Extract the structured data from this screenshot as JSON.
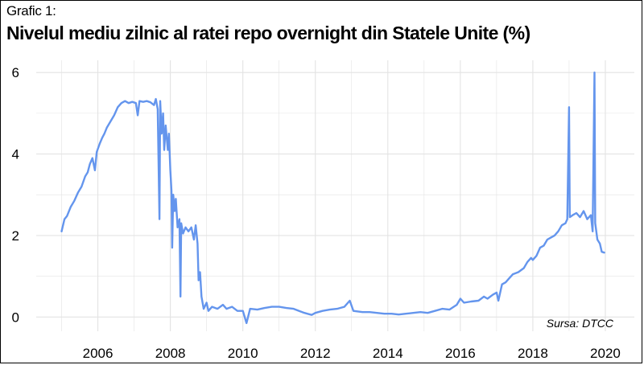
{
  "header": {
    "label": "Grafic 1:",
    "title": "Nivelul mediu zilnic al ratei repo overnight din Statele Unite (%)"
  },
  "source": "Sursa: DTCC",
  "colors": {
    "series": "#6495ed",
    "grid": "#e3e3e3",
    "frame": "#000000"
  },
  "chart_data": {
    "type": "line",
    "title": "Nivelul mediu zilnic al ratei repo overnight din Statele Unite (%)",
    "xlabel": "",
    "ylabel": "",
    "xlim": [
      2004.3,
      2020.8
    ],
    "ylim": [
      -0.35,
      6.3
    ],
    "grid": true,
    "legend": "none",
    "x_ticks": [
      2006,
      2008,
      2010,
      2012,
      2014,
      2016,
      2018,
      2020
    ],
    "y_ticks": [
      0,
      2,
      4,
      6
    ],
    "series": [
      {
        "values": [
          [
            2005.0,
            2.1
          ],
          [
            2005.03,
            2.22
          ],
          [
            2005.08,
            2.4
          ],
          [
            2005.15,
            2.48
          ],
          [
            2005.25,
            2.7
          ],
          [
            2005.35,
            2.85
          ],
          [
            2005.45,
            3.05
          ],
          [
            2005.55,
            3.2
          ],
          [
            2005.65,
            3.45
          ],
          [
            2005.72,
            3.55
          ],
          [
            2005.78,
            3.75
          ],
          [
            2005.85,
            3.9
          ],
          [
            2005.92,
            3.6
          ],
          [
            2005.97,
            4.05
          ],
          [
            2006.05,
            4.25
          ],
          [
            2006.12,
            4.4
          ],
          [
            2006.18,
            4.5
          ],
          [
            2006.25,
            4.65
          ],
          [
            2006.35,
            4.8
          ],
          [
            2006.45,
            4.95
          ],
          [
            2006.55,
            5.15
          ],
          [
            2006.65,
            5.25
          ],
          [
            2006.75,
            5.3
          ],
          [
            2006.85,
            5.25
          ],
          [
            2006.95,
            5.28
          ],
          [
            2007.05,
            5.25
          ],
          [
            2007.1,
            4.95
          ],
          [
            2007.15,
            5.3
          ],
          [
            2007.25,
            5.28
          ],
          [
            2007.35,
            5.3
          ],
          [
            2007.45,
            5.27
          ],
          [
            2007.55,
            5.2
          ],
          [
            2007.6,
            5.35
          ],
          [
            2007.65,
            5.1
          ],
          [
            2007.7,
            2.4
          ],
          [
            2007.72,
            5.3
          ],
          [
            2007.76,
            4.5
          ],
          [
            2007.8,
            5.0
          ],
          [
            2007.83,
            4.1
          ],
          [
            2007.87,
            4.7
          ],
          [
            2007.9,
            4.4
          ],
          [
            2007.93,
            4.1
          ],
          [
            2007.96,
            4.5
          ],
          [
            2008.0,
            3.6
          ],
          [
            2008.03,
            3.1
          ],
          [
            2008.05,
            1.7
          ],
          [
            2008.08,
            3.0
          ],
          [
            2008.12,
            2.6
          ],
          [
            2008.15,
            2.9
          ],
          [
            2008.2,
            2.2
          ],
          [
            2008.25,
            2.4
          ],
          [
            2008.28,
            0.5
          ],
          [
            2008.3,
            2.3
          ],
          [
            2008.35,
            2.05
          ],
          [
            2008.42,
            2.2
          ],
          [
            2008.5,
            2.1
          ],
          [
            2008.58,
            2.2
          ],
          [
            2008.65,
            1.9
          ],
          [
            2008.7,
            2.25
          ],
          [
            2008.75,
            1.8
          ],
          [
            2008.78,
            0.9
          ],
          [
            2008.82,
            1.1
          ],
          [
            2008.86,
            0.5
          ],
          [
            2008.92,
            0.2
          ],
          [
            2009.0,
            0.35
          ],
          [
            2009.05,
            0.15
          ],
          [
            2009.15,
            0.25
          ],
          [
            2009.3,
            0.2
          ],
          [
            2009.45,
            0.3
          ],
          [
            2009.55,
            0.2
          ],
          [
            2009.7,
            0.25
          ],
          [
            2009.85,
            0.15
          ],
          [
            2010.0,
            0.15
          ],
          [
            2010.1,
            -0.15
          ],
          [
            2010.2,
            0.2
          ],
          [
            2010.4,
            0.18
          ],
          [
            2010.6,
            0.22
          ],
          [
            2010.8,
            0.25
          ],
          [
            2011.0,
            0.25
          ],
          [
            2011.2,
            0.22
          ],
          [
            2011.4,
            0.2
          ],
          [
            2011.55,
            0.15
          ],
          [
            2011.7,
            0.1
          ],
          [
            2011.9,
            0.05
          ],
          [
            2012.0,
            0.1
          ],
          [
            2012.2,
            0.15
          ],
          [
            2012.4,
            0.18
          ],
          [
            2012.6,
            0.2
          ],
          [
            2012.8,
            0.25
          ],
          [
            2012.95,
            0.4
          ],
          [
            2013.05,
            0.15
          ],
          [
            2013.3,
            0.12
          ],
          [
            2013.5,
            0.12
          ],
          [
            2013.7,
            0.1
          ],
          [
            2013.9,
            0.08
          ],
          [
            2014.1,
            0.08
          ],
          [
            2014.3,
            0.06
          ],
          [
            2014.5,
            0.08
          ],
          [
            2014.7,
            0.1
          ],
          [
            2014.9,
            0.12
          ],
          [
            2015.1,
            0.1
          ],
          [
            2015.3,
            0.15
          ],
          [
            2015.5,
            0.2
          ],
          [
            2015.7,
            0.18
          ],
          [
            2015.9,
            0.3
          ],
          [
            2016.0,
            0.45
          ],
          [
            2016.1,
            0.35
          ],
          [
            2016.3,
            0.38
          ],
          [
            2016.5,
            0.4
          ],
          [
            2016.65,
            0.5
          ],
          [
            2016.75,
            0.45
          ],
          [
            2016.9,
            0.55
          ],
          [
            2017.0,
            0.6
          ],
          [
            2017.05,
            0.4
          ],
          [
            2017.15,
            0.8
          ],
          [
            2017.25,
            0.85
          ],
          [
            2017.35,
            0.95
          ],
          [
            2017.45,
            1.05
          ],
          [
            2017.6,
            1.1
          ],
          [
            2017.75,
            1.2
          ],
          [
            2017.85,
            1.35
          ],
          [
            2017.95,
            1.45
          ],
          [
            2018.0,
            1.4
          ],
          [
            2018.1,
            1.5
          ],
          [
            2018.2,
            1.7
          ],
          [
            2018.3,
            1.75
          ],
          [
            2018.4,
            1.9
          ],
          [
            2018.5,
            1.95
          ],
          [
            2018.6,
            2.0
          ],
          [
            2018.7,
            2.1
          ],
          [
            2018.8,
            2.25
          ],
          [
            2018.9,
            2.3
          ],
          [
            2018.95,
            2.4
          ],
          [
            2019.0,
            5.15
          ],
          [
            2019.02,
            2.45
          ],
          [
            2019.1,
            2.5
          ],
          [
            2019.2,
            2.55
          ],
          [
            2019.3,
            2.45
          ],
          [
            2019.4,
            2.6
          ],
          [
            2019.5,
            2.4
          ],
          [
            2019.6,
            2.5
          ],
          [
            2019.65,
            2.1
          ],
          [
            2019.7,
            6.0
          ],
          [
            2019.72,
            2.3
          ],
          [
            2019.78,
            1.9
          ],
          [
            2019.85,
            1.8
          ],
          [
            2019.9,
            1.6
          ],
          [
            2019.97,
            1.58
          ]
        ]
      }
    ]
  }
}
